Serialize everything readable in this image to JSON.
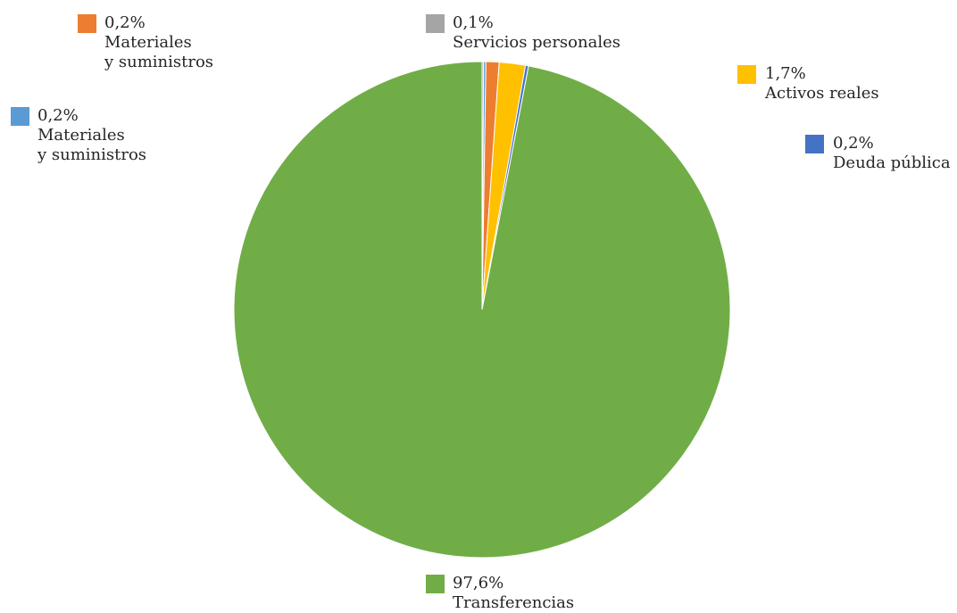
{
  "chart_data": {
    "type": "pie",
    "title": "",
    "slices": [
      {
        "key": "materiales-a",
        "percent_label": "0,2%",
        "name_lines": [
          "Materiales",
          "y suministros"
        ],
        "value": 0.2,
        "color": "#5B9BD5"
      },
      {
        "key": "materiales-b",
        "percent_label": "0,2%",
        "name_lines": [
          "Materiales",
          "y suministros"
        ],
        "value": 0.2,
        "color": "#ED7D31"
      },
      {
        "key": "servicios",
        "percent_label": "0,1%",
        "name_lines": [
          "Servicios personales"
        ],
        "value": 0.1,
        "color": "#A5A5A5"
      },
      {
        "key": "activos",
        "percent_label": "1,7%",
        "name_lines": [
          "Activos reales"
        ],
        "value": 1.7,
        "color": "#FFC000"
      },
      {
        "key": "deuda",
        "percent_label": "0,2%",
        "name_lines": [
          "Deuda pública"
        ],
        "value": 0.2,
        "color": "#4472C4"
      },
      {
        "key": "transferencias",
        "percent_label": "97,6%",
        "name_lines": [
          "Transferencias"
        ],
        "value": 97.6,
        "color": "#70AD47"
      }
    ]
  }
}
